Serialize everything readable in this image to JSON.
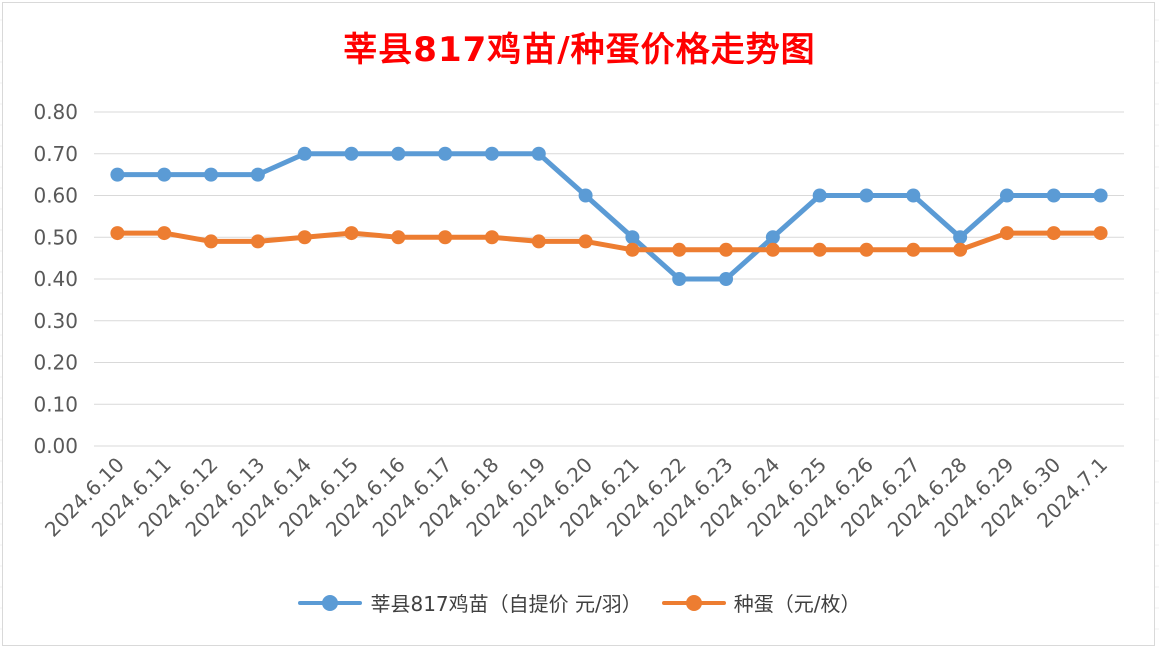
{
  "chart_data": {
    "type": "line",
    "title": "莘县817鸡苗/种蛋价格走势图",
    "categories": [
      "2024.6.10",
      "2024.6.11",
      "2024.6.12",
      "2024.6.13",
      "2024.6.14",
      "2024.6.15",
      "2024.6.16",
      "2024.6.17",
      "2024.6.18",
      "2024.6.19",
      "2024.6.20",
      "2024.6.21",
      "2024.6.22",
      "2024.6.23",
      "2024.6.24",
      "2024.6.25",
      "2024.6.26",
      "2024.6.27",
      "2024.6.28",
      "2024.6.29",
      "2024.6.30",
      "2024.7.1"
    ],
    "series": [
      {
        "name": "莘县817鸡苗（自提价 元/羽）",
        "color": "#5b9bd5",
        "values": [
          0.65,
          0.65,
          0.65,
          0.65,
          0.7,
          0.7,
          0.7,
          0.7,
          0.7,
          0.7,
          0.6,
          0.5,
          0.4,
          0.4,
          0.5,
          0.6,
          0.6,
          0.6,
          0.5,
          0.6,
          0.6,
          0.6
        ]
      },
      {
        "name": "种蛋（元/枚）",
        "color": "#ed7d31",
        "values": [
          0.51,
          0.51,
          0.49,
          0.49,
          0.5,
          0.51,
          0.5,
          0.5,
          0.5,
          0.49,
          0.49,
          0.47,
          0.47,
          0.47,
          0.47,
          0.47,
          0.47,
          0.47,
          0.47,
          0.51,
          0.51,
          0.51
        ]
      }
    ],
    "ylim": [
      0,
      0.8
    ],
    "yticks": [
      "0.00",
      "0.10",
      "0.20",
      "0.30",
      "0.40",
      "0.50",
      "0.60",
      "0.70",
      "0.80"
    ],
    "grid": true,
    "legend_position": "bottom"
  }
}
